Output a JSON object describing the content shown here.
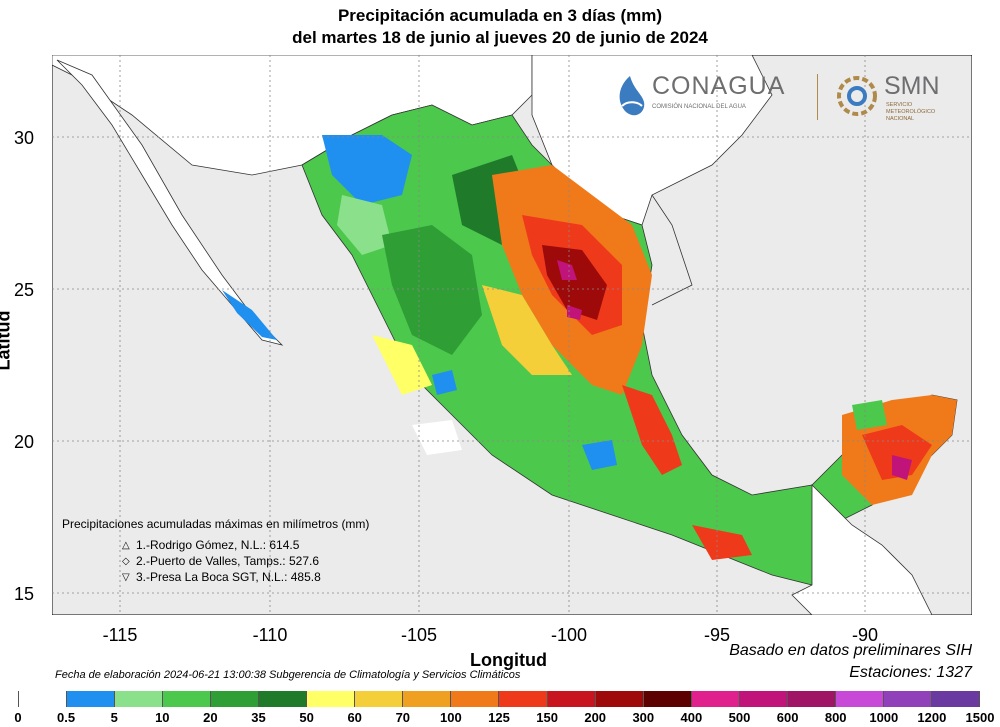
{
  "title": {
    "line1": "Precipitación acumulada en 3 días (mm)",
    "line2": "del martes 18 de junio al jueves 20 de junio de 2024"
  },
  "axes": {
    "xlabel": "Longitud",
    "ylabel": "Latitud",
    "xticks": [
      "-115",
      "-110",
      "-105",
      "-100",
      "-95",
      "-90"
    ],
    "yticks": [
      "30",
      "25",
      "20",
      "15"
    ]
  },
  "logos": {
    "conagua": "CONAGUA",
    "conagua_sub": "COMISIÓN NACIONAL DEL AGUA",
    "smn": "SMN",
    "smn_sub": "SERVICIO METEOROLÓGICO NACIONAL"
  },
  "maxima": {
    "heading": "Precipitaciones acumuladas máximas en milímetros (mm)",
    "items": [
      {
        "symbol": "△",
        "text": "1.-Rodrigo Gómez, N.L.: 614.5"
      },
      {
        "symbol": "◇",
        "text": "2.-Puerto de Valles, Tamps.: 527.6"
      },
      {
        "symbol": "▽",
        "text": "3.-Presa La Boca SGT, N.L.: 485.8"
      }
    ]
  },
  "footer": {
    "credit": "Fecha de elaboración 2024-06-21 13:00:38 Subgerencia de Climatología y Servicios Climáticos",
    "basis": "Basado en datos preliminares SIH",
    "stations": "Estaciones:  1327"
  },
  "legend": {
    "labels": [
      "0",
      "0.5",
      "5",
      "10",
      "20",
      "35",
      "50",
      "60",
      "70",
      "100",
      "125",
      "150",
      "200",
      "300",
      "400",
      "500",
      "600",
      "800",
      "1000",
      "1200",
      "1500"
    ],
    "colors": [
      "#ffffff",
      "#1f8ff0",
      "#8be08b",
      "#4cc84c",
      "#2f9e35",
      "#1f7a2a",
      "#ffff66",
      "#f5cf3a",
      "#f0a020",
      "#f07a1a",
      "#ee3a1a",
      "#c8141e",
      "#9e0a0a",
      "#5c0000",
      "#e0208c",
      "#c0147a",
      "#a01466",
      "#c848d8",
      "#9040b8",
      "#6a3aa0",
      "#3e2a8c"
    ]
  }
}
